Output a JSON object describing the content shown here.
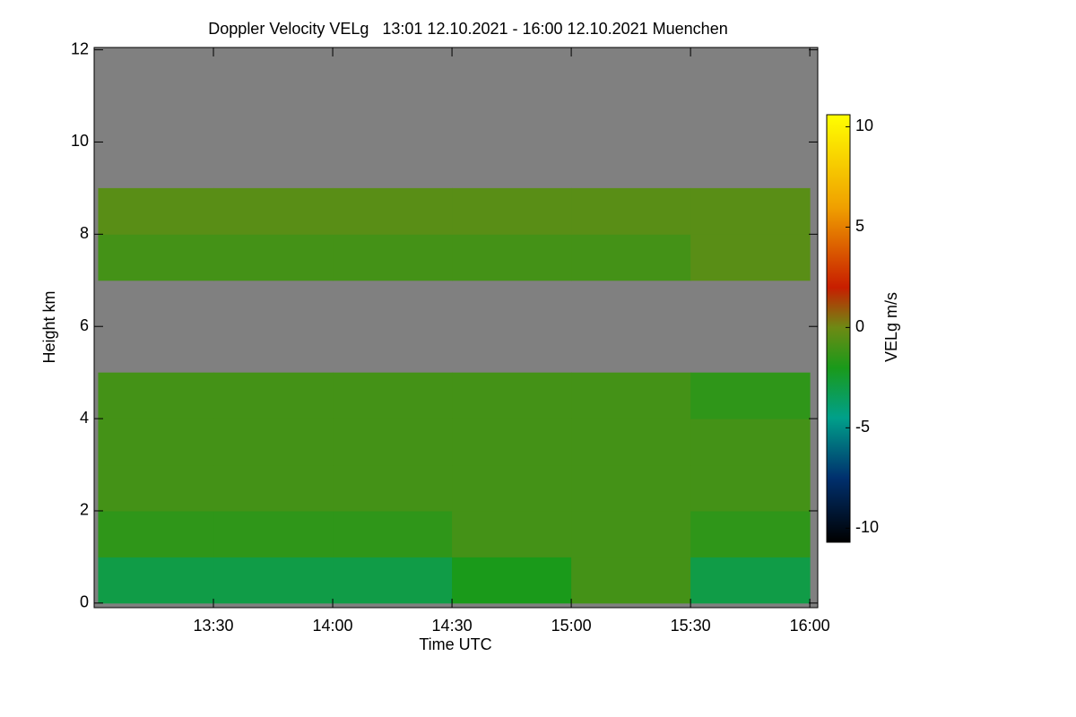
{
  "chart_data": {
    "type": "heatmap",
    "title": "Doppler Velocity VELg   13:01 12.10.2021 - 16:00 12.10.2021 Muenchen",
    "x_label": "Time UTC",
    "y_label": "Height km",
    "colorbar_label": "VELg m/s",
    "xlim": [
      13.0,
      16.0333
    ],
    "ylim": [
      -0.1,
      12.05
    ],
    "xticks": [
      {
        "value": 13.5,
        "label": "13:30"
      },
      {
        "value": 14.0,
        "label": "14:00"
      },
      {
        "value": 14.5,
        "label": "14:30"
      },
      {
        "value": 15.0,
        "label": "15:00"
      },
      {
        "value": 15.5,
        "label": "15:30"
      },
      {
        "value": 16.0,
        "label": "16:00"
      }
    ],
    "yticks": [
      0,
      2,
      4,
      6,
      8,
      10,
      12
    ],
    "x_edges": [
      13.0167,
      13.5,
      14.0,
      14.5,
      15.0,
      15.5,
      16.0
    ],
    "y_edges": [
      0,
      1,
      2,
      3,
      4,
      5,
      6,
      7,
      8,
      9,
      10,
      11,
      12
    ],
    "values": [
      [
        -3,
        -3,
        -3,
        -2,
        -1,
        -3
      ],
      [
        -1.5,
        -1.5,
        -1.5,
        -1,
        -1,
        -1.5
      ],
      [
        -1,
        -1,
        -1,
        -1,
        -1,
        -1
      ],
      [
        -1,
        -1,
        -1,
        -1,
        -1,
        -1
      ],
      [
        -1,
        -1,
        -1,
        -1,
        -1,
        -1.5
      ],
      [
        null,
        null,
        null,
        null,
        null,
        null
      ],
      [
        null,
        null,
        null,
        null,
        null,
        null
      ],
      [
        -1,
        -1,
        -1,
        -1,
        -1,
        -0.5
      ],
      [
        -0.5,
        -0.5,
        -0.5,
        -0.5,
        -0.5,
        -0.5
      ],
      [
        null,
        null,
        null,
        null,
        null,
        null
      ],
      [
        null,
        null,
        null,
        null,
        null,
        null
      ],
      [
        null,
        null,
        null,
        null,
        null,
        null
      ]
    ],
    "zlim": [
      -10.7,
      10.6
    ],
    "zticks": [
      -10,
      -5,
      0,
      5,
      10
    ],
    "colorscale": [
      [
        -10.7,
        "#000000"
      ],
      [
        -7.5,
        "#00306e"
      ],
      [
        -4.5,
        "#00a08a"
      ],
      [
        -2,
        "#1a9a1a"
      ],
      [
        0,
        "#6e8a14"
      ],
      [
        2,
        "#c81e00"
      ],
      [
        6,
        "#f0a000"
      ],
      [
        10.6,
        "#ffff00"
      ]
    ],
    "missing_color": "#808080"
  }
}
